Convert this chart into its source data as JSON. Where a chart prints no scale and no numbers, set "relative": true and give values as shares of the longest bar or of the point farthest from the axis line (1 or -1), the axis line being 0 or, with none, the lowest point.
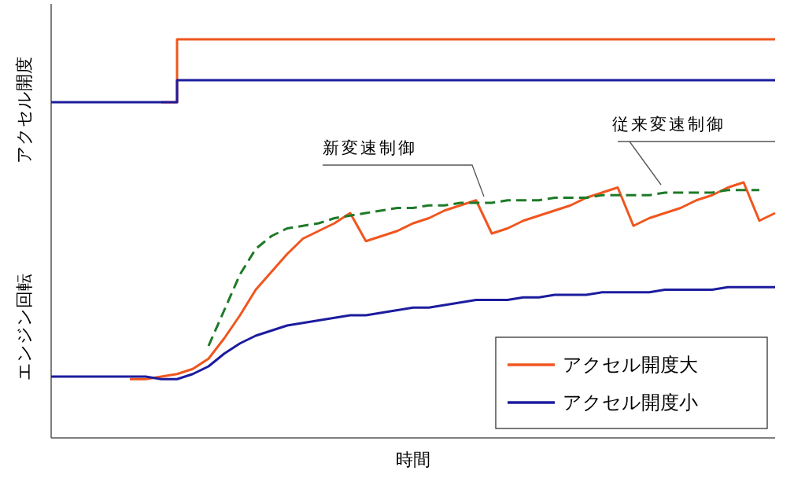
{
  "chart_data": [
    {
      "type": "step",
      "relative": true,
      "ylabel": "アクセル開度",
      "categories": [
        null,
        null,
        null,
        null,
        null,
        null,
        null,
        null,
        null,
        null,
        null,
        null,
        null,
        null,
        null,
        null,
        null,
        null,
        null,
        null,
        null,
        null,
        null,
        null,
        null,
        null,
        null,
        null,
        null,
        null,
        null,
        null,
        null,
        null,
        null,
        null,
        null,
        null,
        null,
        null,
        null,
        null,
        null,
        null,
        null,
        null,
        null
      ],
      "series": [
        {
          "color": "#f0561e",
          "values": [
            null,
            null,
            null,
            null,
            null,
            null,
            null,
            0,
            1,
            1,
            1,
            1,
            1,
            1,
            1,
            1,
            1,
            1,
            1,
            1,
            1,
            1,
            1,
            1,
            1,
            1,
            1,
            1,
            1,
            1,
            1,
            1,
            1,
            1,
            1,
            1,
            1,
            1,
            1,
            1,
            1,
            1,
            1,
            1,
            1,
            1,
            1
          ]
        },
        {
          "color": "#1c1c9e",
          "values": [
            0,
            0,
            0,
            0,
            0,
            0,
            0,
            0,
            0.35,
            0.35,
            0.35,
            0.35,
            0.35,
            0.35,
            0.35,
            0.35,
            0.35,
            0.35,
            0.35,
            0.35,
            0.35,
            0.35,
            0.35,
            0.35,
            0.35,
            0.35,
            0.35,
            0.35,
            0.35,
            0.35,
            0.35,
            0.35,
            0.35,
            0.35,
            0.35,
            0.35,
            0.35,
            0.35,
            0.35,
            0.35,
            0.35,
            0.35,
            0.35,
            0.35,
            0.35,
            0.35,
            0.35
          ]
        }
      ]
    },
    {
      "type": "line",
      "relative": true,
      "ylabel": "エンジン回転",
      "xlabel": "時間",
      "legend": "bottom right",
      "categories": [
        null,
        null,
        null,
        null,
        null,
        null,
        null,
        null,
        null,
        null,
        null,
        null,
        null,
        null,
        null,
        null,
        null,
        null,
        null,
        null,
        null,
        null,
        null,
        null,
        null,
        null,
        null,
        null,
        null,
        null,
        null,
        null,
        null,
        null,
        null,
        null,
        null,
        null,
        null,
        null,
        null,
        null,
        null,
        null,
        null,
        null,
        null
      ],
      "annotations": [
        "新変速制御",
        "従来変速制御"
      ],
      "series": [
        {
          "name": "アクセル開度大",
          "color": "#f0561e",
          "values": [
            null,
            null,
            null,
            null,
            null,
            0.23,
            0.23,
            0.24,
            0.25,
            0.27,
            0.31,
            0.39,
            0.48,
            0.58,
            0.65,
            0.72,
            0.78,
            0.81,
            0.84,
            0.88,
            0.77,
            0.79,
            0.81,
            0.84,
            0.86,
            0.89,
            0.91,
            0.93,
            0.8,
            0.82,
            0.85,
            0.87,
            0.89,
            0.91,
            0.94,
            0.96,
            0.98,
            0.83,
            0.86,
            0.88,
            0.9,
            0.93,
            0.95,
            0.98,
            1.0,
            0.85,
            0.88
          ]
        },
        {
          "name": "アクセル開度小",
          "color": "#1c1c9e",
          "values": [
            0.24,
            0.24,
            0.24,
            0.24,
            0.24,
            0.24,
            0.24,
            0.23,
            0.23,
            0.25,
            0.28,
            0.33,
            0.37,
            0.4,
            0.42,
            0.44,
            0.45,
            0.46,
            0.47,
            0.48,
            0.48,
            0.49,
            0.5,
            0.51,
            0.51,
            0.52,
            0.53,
            0.54,
            0.54,
            0.54,
            0.55,
            0.55,
            0.56,
            0.56,
            0.56,
            0.57,
            0.57,
            0.57,
            0.57,
            0.58,
            0.58,
            0.58,
            0.58,
            0.59,
            0.59,
            0.59,
            0.59
          ]
        },
        {
          "color": "#1e7a28",
          "line_style": "dashed",
          "values": [
            null,
            null,
            null,
            null,
            null,
            null,
            null,
            null,
            null,
            null,
            0.36,
            0.5,
            0.64,
            0.74,
            0.79,
            0.82,
            0.83,
            0.84,
            0.86,
            0.87,
            0.88,
            0.89,
            0.9,
            0.9,
            0.91,
            0.91,
            0.92,
            0.92,
            0.92,
            0.93,
            0.93,
            0.93,
            0.94,
            0.94,
            0.94,
            0.95,
            0.95,
            0.95,
            0.95,
            0.96,
            0.96,
            0.96,
            0.96,
            0.97,
            0.97,
            0.97,
            null
          ]
        }
      ]
    }
  ]
}
